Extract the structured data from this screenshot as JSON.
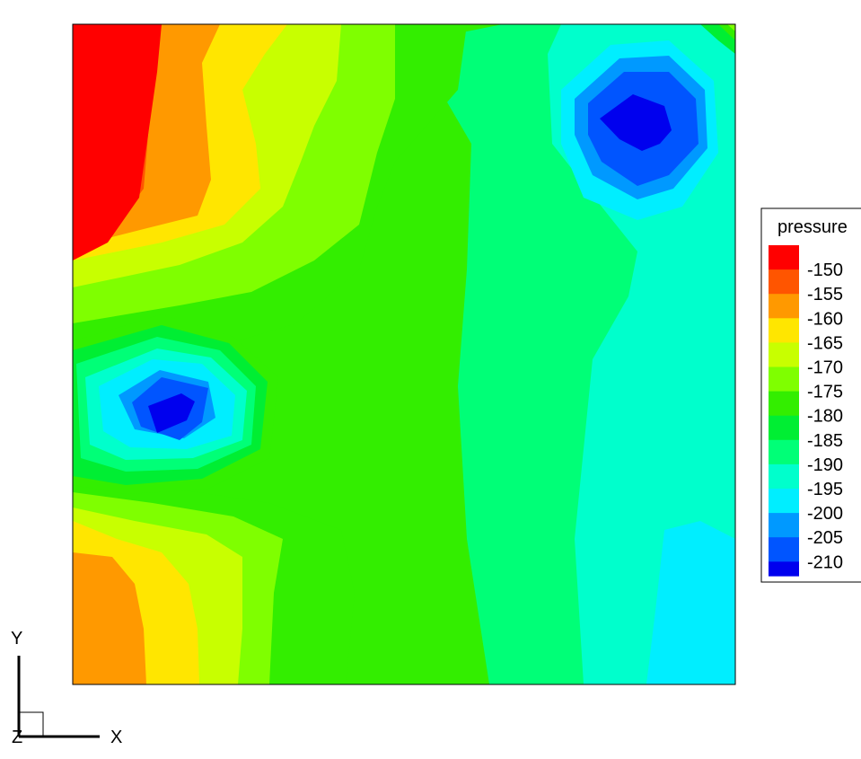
{
  "chart_data": {
    "type": "heatmap",
    "subtype": "filled-contour",
    "variable": "pressure",
    "legend": {
      "title": "pressure",
      "placement": "right",
      "levels": [
        -150,
        -155,
        -160,
        -165,
        -170,
        -175,
        -180,
        -185,
        -190,
        -195,
        -200,
        -205,
        -210
      ],
      "level_labels": [
        "-150",
        "-155",
        "-160",
        "-165",
        "-170",
        "-175",
        "-180",
        "-185",
        "-190",
        "-195",
        "-200",
        "-205",
        "-210"
      ],
      "colors": [
        "#ff0000",
        "#ff5500",
        "#ff9900",
        "#ffe600",
        "#c8ff00",
        "#7fff00",
        "#33ee00",
        "#00ee33",
        "#00ff77",
        "#00ffcc",
        "#00eeff",
        "#0099ff",
        "#0055ff",
        "#0000ee"
      ]
    },
    "axis_triad": {
      "x_label": "X",
      "y_label": "Y",
      "z_label": "Z"
    },
    "features": [
      {
        "kind": "low",
        "location": "upper-right",
        "min_level": -210
      },
      {
        "kind": "low",
        "location": "middle-left",
        "min_level": -210
      },
      {
        "kind": "high",
        "location": "upper-left",
        "max_level": -150
      },
      {
        "kind": "high",
        "location": "lower-left",
        "max_level": -160
      },
      {
        "kind": "low",
        "location": "lower-right",
        "min_level": -200
      }
    ]
  }
}
